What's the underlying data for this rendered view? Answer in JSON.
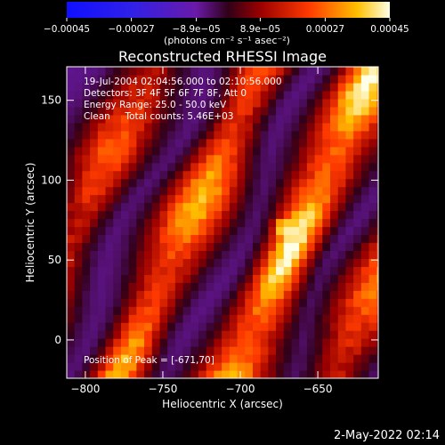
{
  "chart_data": {
    "type": "heatmap",
    "title": "Reconstructed RHESSI Image",
    "xlabel": "Heliocentric X (arcsec)",
    "ylabel": "Heliocentric Y (arcsec)",
    "xlim": [
      -812,
      -611
    ],
    "ylim": [
      -24,
      171
    ],
    "xticks": [
      -800,
      -750,
      -700,
      -650
    ],
    "yticks": [
      0,
      50,
      100,
      150
    ],
    "colorbar": {
      "min": -0.00045,
      "max": 0.00045,
      "ticks": [
        {
          "value": -0.00045,
          "label": "−0.00045"
        },
        {
          "value": -0.00027,
          "label": "−0.00027"
        },
        {
          "value": -8.9e-05,
          "label": "−8.9e−05"
        },
        {
          "value": 8.9e-05,
          "label": "8.9e−05"
        },
        {
          "value": 0.00027,
          "label": "0.00027"
        },
        {
          "value": 0.00045,
          "label": "0.00045"
        }
      ],
      "unit_label": "(photons cm⁻² s⁻¹ asec⁻²)"
    },
    "annotations": [
      "19-Jul-2004 02:04:56.000 to 02:10:56.000",
      "Detectors: 3F 4F 5F 6F 7F 8F, Att 0",
      "Energy Range: 25.0 - 50.0 keV",
      "Clean     Total counts: 5.46E+03"
    ],
    "peak_label": "Position of Peak = [-671,70]",
    "peak": [
      -671,
      70
    ],
    "stripes": [
      {
        "x_at_y0": -768,
        "intensity": 0.82
      },
      {
        "x_at_y0": -695,
        "intensity": 1.0
      },
      {
        "x_at_y0": -628,
        "intensity": 0.68
      },
      {
        "x_at_y0": -840,
        "intensity": 0.62
      }
    ],
    "stripe_slope_x_per_y": 0.48
  },
  "footer": {
    "timestamp": "2-May-2022 02:14"
  }
}
